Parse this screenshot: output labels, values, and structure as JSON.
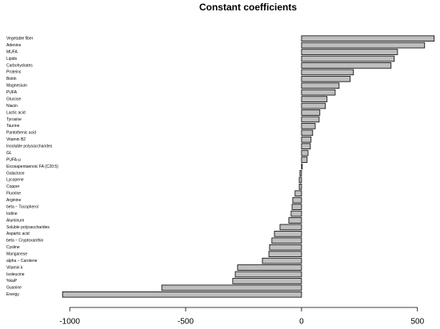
{
  "chart_data": {
    "type": "barh",
    "title": "Constant coefficients",
    "categories": [
      "Vegetable fiber",
      "Adenine",
      "MUFA",
      "Lipids",
      "Carbohydrates",
      "Proteins",
      "Biotin",
      "Magnesium",
      "PUFA",
      "Glucose",
      "Niacin",
      "Lactic acid",
      "Tyrosine",
      "Taurine",
      "Pantothenic acid",
      "Vitamin B2",
      "Insoluble polysaccharides",
      "GL",
      "PUFA ω",
      "Eicosapentaenoic FA (C20:5)",
      "Galactose",
      "Lycopene",
      "Copper",
      "Fluorine",
      "Arginine",
      "beta − Tocopherol",
      "Iodine",
      "Aluminum",
      "Soluble polysaccharides",
      "Aspartic acid",
      "beta − Cryptoxanthin",
      "Cystine",
      "Manganese",
      "alpha − Carotene",
      "Vitamin k",
      "Isoleucine",
      "%kaP",
      "Guanine",
      "Energy"
    ],
    "values": [
      572,
      531,
      414,
      400,
      386,
      224,
      210,
      162,
      145,
      110,
      103,
      79,
      76,
      59,
      48,
      41,
      38,
      28,
      24,
      3,
      -7,
      -10,
      -10,
      -28,
      -38,
      -41,
      -45,
      -55,
      -93,
      -117,
      -128,
      -138,
      -141,
      -169,
      -276,
      -286,
      -297,
      -603,
      -1031
    ],
    "color": "#bebebe",
    "xlim": [
      -1035,
      580
    ],
    "xticks": [
      -1000,
      -500,
      0,
      500
    ]
  }
}
